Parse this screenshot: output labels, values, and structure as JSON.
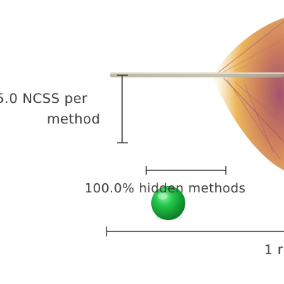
{
  "legend": {
    "ncss_label_line1": "5.0 NCSS per",
    "ncss_label_line2": "method",
    "hidden_methods_label": "100.0% hidden methods",
    "bottom_label": "1 r"
  },
  "colors": {
    "glyph_warm": "#f2b24a",
    "glyph_mid": "#d98a5a",
    "glyph_deep": "#a8485e",
    "glyph_purple": "#8a4a7a",
    "scale_line": "#333333",
    "marker": "#19b33c"
  },
  "icons": {
    "marker": "green-ball-icon"
  }
}
